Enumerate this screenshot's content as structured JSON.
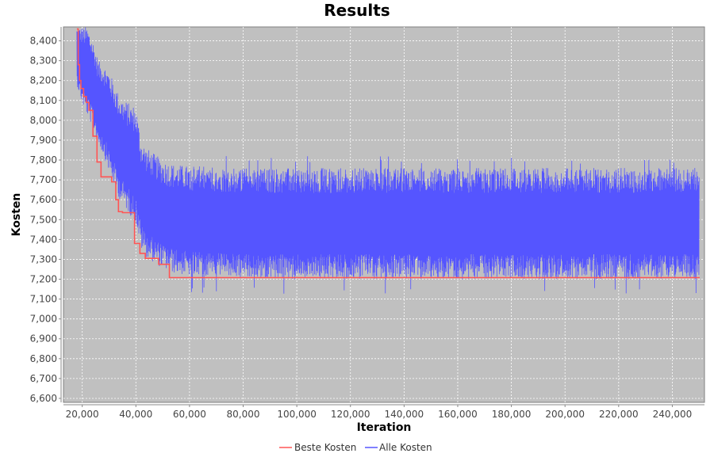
{
  "chart_data": {
    "type": "line",
    "title": "Results",
    "xlabel": "Iteration",
    "ylabel": "Kosten",
    "xlim": [
      13000,
      252000
    ],
    "ylim": [
      6580,
      8470
    ],
    "x_ticks": [
      20000,
      40000,
      60000,
      80000,
      100000,
      120000,
      140000,
      160000,
      180000,
      200000,
      220000,
      240000
    ],
    "x_tick_labels": [
      "20,000",
      "40,000",
      "60,000",
      "80,000",
      "100,000",
      "120,000",
      "140,000",
      "160,000",
      "180,000",
      "200,000",
      "220,000",
      "240,000"
    ],
    "y_ticks": [
      6600,
      6700,
      6800,
      6900,
      7000,
      7100,
      7200,
      7300,
      7400,
      7500,
      7600,
      7700,
      7800,
      7900,
      8000,
      8100,
      8200,
      8300,
      8400
    ],
    "y_tick_labels": [
      "6,600",
      "6,700",
      "6,800",
      "6,900",
      "7,000",
      "7,100",
      "7,200",
      "7,300",
      "7,400",
      "7,500",
      "7,600",
      "7,700",
      "7,800",
      "7,900",
      "8,000",
      "8,100",
      "8,200",
      "8,300",
      "8,400"
    ],
    "grid": true,
    "legend_position": "bottom",
    "background_color": "#c0c0c0",
    "series": [
      {
        "name": "Beste Kosten",
        "color": "#ff5555",
        "kind": "step",
        "x": [
          18000,
          18500,
          19000,
          19500,
          20500,
          21500,
          22500,
          24000,
          25500,
          27000,
          31000,
          32500,
          33500,
          35000,
          39500,
          41500,
          43500,
          48500,
          52500,
          250000
        ],
        "y": [
          8460,
          8280,
          8200,
          8160,
          8120,
          8090,
          8050,
          7920,
          7790,
          7715,
          7690,
          7600,
          7540,
          7535,
          7380,
          7330,
          7305,
          7275,
          7208,
          7205
        ]
      },
      {
        "name": "Alle Kosten",
        "color": "#5555ff",
        "kind": "noisy-band",
        "x": [
          18000,
          20000,
          22000,
          24000,
          26000,
          28000,
          30000,
          32000,
          34000,
          36000,
          38000,
          40000,
          42000,
          44000,
          46000,
          48000,
          50000,
          52000,
          54000,
          60000,
          80000,
          100000,
          120000,
          140000,
          160000,
          180000,
          200000,
          220000,
          240000,
          250000
        ],
        "y_low": [
          8180,
          8080,
          8020,
          7960,
          7880,
          7820,
          7740,
          7670,
          7600,
          7560,
          7520,
          7480,
          7350,
          7310,
          7290,
          7270,
          7255,
          7240,
          7230,
          7215,
          7205,
          7200,
          7200,
          7200,
          7200,
          7200,
          7200,
          7200,
          7200,
          7200
        ],
        "y_high": [
          8470,
          8470,
          8470,
          8400,
          8300,
          8280,
          8250,
          8180,
          8120,
          8100,
          8080,
          8070,
          7900,
          7860,
          7840,
          7820,
          7800,
          7790,
          7780,
          7770,
          7760,
          7760,
          7760,
          7760,
          7760,
          7760,
          7760,
          7760,
          7760,
          7760
        ],
        "outlier_low": 7120,
        "outlier_high": 7820
      }
    ]
  }
}
